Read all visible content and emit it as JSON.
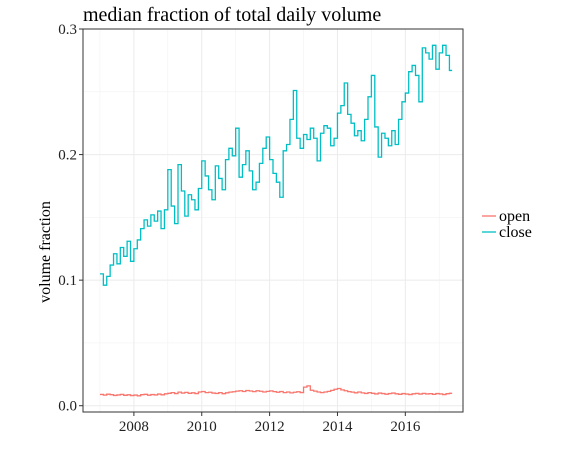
{
  "chart_data": {
    "type": "line",
    "title": "median fraction of total daily volume",
    "xlabel": "",
    "ylabel": "volume fraction",
    "xlim": [
      2006.5,
      2017.7
    ],
    "ylim": [
      -0.005,
      0.3
    ],
    "x_ticks": [
      2008,
      2010,
      2012,
      2014,
      2016
    ],
    "x_tick_labels": [
      "2008",
      "2010",
      "2012",
      "2014",
      "2016"
    ],
    "y_ticks": [
      0.0,
      0.1,
      0.2,
      0.3
    ],
    "y_tick_labels": [
      "0.0",
      "0.1",
      "0.2",
      "0.3"
    ],
    "grid": true,
    "step": true,
    "legend_position": "right",
    "legend_title": "",
    "series": [
      {
        "name": "open",
        "color": "#F8766D",
        "x": [
          2007.0,
          2007.1,
          2007.2,
          2007.3,
          2007.4,
          2007.5,
          2007.6,
          2007.7,
          2007.8,
          2007.9,
          2008.0,
          2008.1,
          2008.2,
          2008.3,
          2008.4,
          2008.5,
          2008.6,
          2008.7,
          2008.8,
          2008.9,
          2009.0,
          2009.1,
          2009.2,
          2009.3,
          2009.4,
          2009.5,
          2009.6,
          2009.7,
          2009.8,
          2009.9,
          2010.0,
          2010.1,
          2010.2,
          2010.3,
          2010.4,
          2010.5,
          2010.6,
          2010.7,
          2010.8,
          2010.9,
          2011.0,
          2011.1,
          2011.2,
          2011.3,
          2011.4,
          2011.5,
          2011.6,
          2011.7,
          2011.8,
          2011.9,
          2012.0,
          2012.1,
          2012.2,
          2012.3,
          2012.4,
          2012.5,
          2012.6,
          2012.7,
          2012.8,
          2012.9,
          2013.0,
          2013.1,
          2013.2,
          2013.3,
          2013.4,
          2013.5,
          2013.6,
          2013.7,
          2013.8,
          2013.9,
          2014.0,
          2014.1,
          2014.2,
          2014.3,
          2014.4,
          2014.5,
          2014.6,
          2014.7,
          2014.8,
          2014.9,
          2015.0,
          2015.1,
          2015.2,
          2015.3,
          2015.4,
          2015.5,
          2015.6,
          2015.7,
          2015.8,
          2015.9,
          2016.0,
          2016.1,
          2016.2,
          2016.3,
          2016.4,
          2016.5,
          2016.6,
          2016.7,
          2016.8,
          2016.9,
          2017.0,
          2017.1,
          2017.2,
          2017.3
        ],
        "y": [
          0.009,
          0.0085,
          0.0092,
          0.0088,
          0.0082,
          0.0086,
          0.009,
          0.0083,
          0.0087,
          0.0081,
          0.0085,
          0.0079,
          0.0088,
          0.0091,
          0.0084,
          0.0089,
          0.0086,
          0.0093,
          0.0087,
          0.0095,
          0.0099,
          0.0104,
          0.0097,
          0.0108,
          0.0101,
          0.0106,
          0.0099,
          0.0103,
          0.0097,
          0.0109,
          0.0113,
          0.0104,
          0.0107,
          0.0101,
          0.0098,
          0.0104,
          0.0096,
          0.0103,
          0.0108,
          0.0111,
          0.0116,
          0.0119,
          0.0113,
          0.0121,
          0.0117,
          0.0112,
          0.0119,
          0.0115,
          0.0109,
          0.0114,
          0.0118,
          0.0112,
          0.0107,
          0.0113,
          0.0104,
          0.0109,
          0.0102,
          0.0107,
          0.0111,
          0.0105,
          0.0148,
          0.0158,
          0.0123,
          0.0116,
          0.0109,
          0.0104,
          0.0109,
          0.0114,
          0.0122,
          0.0131,
          0.0137,
          0.0126,
          0.0119,
          0.0112,
          0.0108,
          0.0103,
          0.0109,
          0.0102,
          0.0098,
          0.0104,
          0.0099,
          0.0094,
          0.0101,
          0.0097,
          0.0092,
          0.0097,
          0.0101,
          0.0095,
          0.0091,
          0.0097,
          0.0093,
          0.0089,
          0.0095,
          0.0098,
          0.0093,
          0.0098,
          0.0094,
          0.0096,
          0.0091,
          0.0097,
          0.0094,
          0.0089,
          0.0096,
          0.0099
        ]
      },
      {
        "name": "close",
        "color": "#00BFC4",
        "x": [
          2007.0,
          2007.1,
          2007.2,
          2007.3,
          2007.4,
          2007.5,
          2007.6,
          2007.7,
          2007.8,
          2007.9,
          2008.0,
          2008.1,
          2008.2,
          2008.3,
          2008.4,
          2008.5,
          2008.6,
          2008.7,
          2008.8,
          2008.9,
          2009.0,
          2009.1,
          2009.2,
          2009.3,
          2009.4,
          2009.5,
          2009.6,
          2009.7,
          2009.8,
          2009.9,
          2010.0,
          2010.1,
          2010.2,
          2010.3,
          2010.4,
          2010.5,
          2010.6,
          2010.7,
          2010.8,
          2010.9,
          2011.0,
          2011.1,
          2011.2,
          2011.3,
          2011.4,
          2011.5,
          2011.6,
          2011.7,
          2011.8,
          2011.9,
          2012.0,
          2012.1,
          2012.2,
          2012.3,
          2012.4,
          2012.5,
          2012.6,
          2012.7,
          2012.8,
          2012.9,
          2013.0,
          2013.1,
          2013.2,
          2013.3,
          2013.4,
          2013.5,
          2013.6,
          2013.7,
          2013.8,
          2013.9,
          2014.0,
          2014.1,
          2014.2,
          2014.3,
          2014.4,
          2014.5,
          2014.6,
          2014.7,
          2014.8,
          2014.9,
          2015.0,
          2015.1,
          2015.2,
          2015.3,
          2015.4,
          2015.5,
          2015.6,
          2015.7,
          2015.8,
          2015.9,
          2016.0,
          2016.1,
          2016.2,
          2016.3,
          2016.4,
          2016.5,
          2016.6,
          2016.7,
          2016.8,
          2016.9,
          2017.0,
          2017.1,
          2017.2,
          2017.3
        ],
        "y": [
          0.105,
          0.096,
          0.103,
          0.112,
          0.121,
          0.113,
          0.126,
          0.119,
          0.131,
          0.115,
          0.125,
          0.132,
          0.141,
          0.148,
          0.143,
          0.152,
          0.147,
          0.155,
          0.141,
          0.156,
          0.188,
          0.159,
          0.145,
          0.192,
          0.171,
          0.151,
          0.168,
          0.164,
          0.156,
          0.173,
          0.195,
          0.183,
          0.172,
          0.164,
          0.191,
          0.181,
          0.172,
          0.196,
          0.205,
          0.199,
          0.221,
          0.182,
          0.192,
          0.203,
          0.187,
          0.172,
          0.178,
          0.193,
          0.205,
          0.214,
          0.196,
          0.185,
          0.178,
          0.166,
          0.203,
          0.208,
          0.228,
          0.251,
          0.213,
          0.205,
          0.216,
          0.212,
          0.221,
          0.213,
          0.195,
          0.217,
          0.223,
          0.221,
          0.207,
          0.213,
          0.233,
          0.239,
          0.257,
          0.232,
          0.225,
          0.215,
          0.219,
          0.211,
          0.228,
          0.246,
          0.263,
          0.222,
          0.198,
          0.217,
          0.213,
          0.207,
          0.219,
          0.208,
          0.228,
          0.242,
          0.249,
          0.266,
          0.271,
          0.263,
          0.242,
          0.285,
          0.281,
          0.276,
          0.287,
          0.268,
          0.281,
          0.287,
          0.279,
          0.267
        ]
      }
    ]
  }
}
